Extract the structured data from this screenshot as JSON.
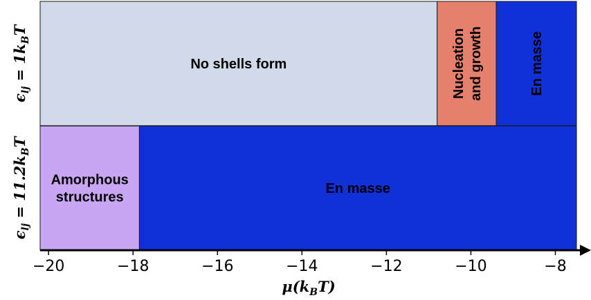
{
  "chart_data": {
    "type": "phase-diagram",
    "xlabel": "μ(k_B T)",
    "xlim": [
      -20.2,
      -7.5
    ],
    "xticks": [
      -20,
      -18,
      -16,
      -14,
      -12,
      -10,
      -8
    ],
    "xtick_labels": [
      "−20",
      "−18",
      "−16",
      "−14",
      "−12",
      "−10",
      "−8"
    ],
    "rows": [
      {
        "label": "ϵlj = 1 kBT",
        "regions": [
          {
            "from": -20.2,
            "to": -10.8,
            "label_lines": [
              "No shells form"
            ],
            "color": "#d0dae8",
            "orientation": "horizontal"
          },
          {
            "from": -10.8,
            "to": -9.4,
            "label_lines": [
              "Nucleation",
              "and growth"
            ],
            "color": "#e4806c",
            "orientation": "vertical"
          },
          {
            "from": -9.4,
            "to": -7.5,
            "label_lines": [
              "En masse"
            ],
            "color": "#1030d8",
            "orientation": "vertical"
          }
        ]
      },
      {
        "label": "ϵlj = 11.2kBT",
        "regions": [
          {
            "from": -20.2,
            "to": -17.85,
            "label_lines": [
              "Amorphous",
              "structures"
            ],
            "color": "#c8a6f4",
            "orientation": "horizontal"
          },
          {
            "from": -17.85,
            "to": -7.5,
            "label_lines": [
              "En masse"
            ],
            "color": "#1030d8",
            "orientation": "horizontal"
          }
        ]
      }
    ]
  }
}
